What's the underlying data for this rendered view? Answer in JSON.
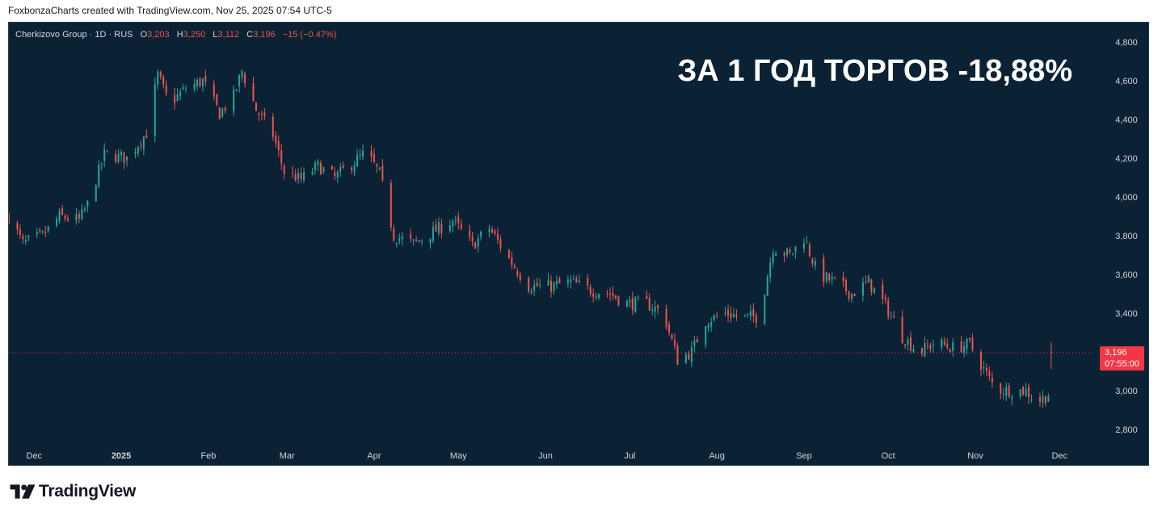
{
  "header": {
    "attribution": "FoxbonzaCharts created with TradingView.com, Nov 25, 2025 07:54 UTC-5"
  },
  "legend": {
    "symbol": "Cherkizovo Group · 1D · RUS",
    "o_label": "O",
    "o_value": "3,203",
    "h_label": "H",
    "h_value": "3,250",
    "l_label": "L",
    "l_value": "3,112",
    "c_label": "C",
    "c_value": "3,196",
    "change": "−15 (−0.47%)"
  },
  "headline": "ЗА 1 ГОД ТОРГОВ -18,88%",
  "price_tag": {
    "price": "3,196",
    "countdown": "07:55:00"
  },
  "footer": {
    "brand": "TradingView"
  },
  "colors": {
    "background": "#0b2234",
    "up": "#26a69a",
    "down": "#ef5350",
    "axis_text": "#d1d4dc",
    "headline": "#ffffff",
    "last_price": "#f23645"
  },
  "chart_data": {
    "type": "candlestick",
    "title": "",
    "y_axis": {
      "min": 2700,
      "max": 4900,
      "ticks": [
        {
          "value": 4800,
          "label": "4,800"
        },
        {
          "value": 4600,
          "label": "4,600"
        },
        {
          "value": 4400,
          "label": "4,400"
        },
        {
          "value": 4200,
          "label": "4,200"
        },
        {
          "value": 4000,
          "label": "4,000"
        },
        {
          "value": 3800,
          "label": "3,800"
        },
        {
          "value": 3600,
          "label": "3,600"
        },
        {
          "value": 3400,
          "label": "3,400"
        },
        {
          "value": 3000,
          "label": "3,000"
        },
        {
          "value": 2800,
          "label": "2,800"
        }
      ]
    },
    "x_axis": {
      "start_date": "2024-11-22",
      "end_date": "2025-12-13",
      "ticks": [
        {
          "date": "2024-12-01",
          "label": "Dec",
          "bold": false
        },
        {
          "date": "2025-01-01",
          "label": "2025",
          "bold": true
        },
        {
          "date": "2025-02-01",
          "label": "Feb",
          "bold": false
        },
        {
          "date": "2025-03-01",
          "label": "Mar",
          "bold": false
        },
        {
          "date": "2025-04-01",
          "label": "Apr",
          "bold": false
        },
        {
          "date": "2025-05-01",
          "label": "May",
          "bold": false
        },
        {
          "date": "2025-06-01",
          "label": "Jun",
          "bold": false
        },
        {
          "date": "2025-07-01",
          "label": "Jul",
          "bold": false
        },
        {
          "date": "2025-08-01",
          "label": "Aug",
          "bold": false
        },
        {
          "date": "2025-09-01",
          "label": "Sep",
          "bold": false
        },
        {
          "date": "2025-10-01",
          "label": "Oct",
          "bold": false
        },
        {
          "date": "2025-11-01",
          "label": "Nov",
          "bold": false
        },
        {
          "date": "2025-12-01",
          "label": "Dec",
          "bold": false
        }
      ]
    },
    "last_price": 3196,
    "close_path": [
      {
        "date": "2024-11-22",
        "close": 3900
      },
      {
        "date": "2024-11-27",
        "close": 3760
      },
      {
        "date": "2024-12-04",
        "close": 3800
      },
      {
        "date": "2024-12-10",
        "close": 3900
      },
      {
        "date": "2024-12-17",
        "close": 3880
      },
      {
        "date": "2024-12-20",
        "close": 3960
      },
      {
        "date": "2024-12-26",
        "close": 4220
      },
      {
        "date": "2025-01-03",
        "close": 4200
      },
      {
        "date": "2025-01-10",
        "close": 4330
      },
      {
        "date": "2025-01-14",
        "close": 4630
      },
      {
        "date": "2025-01-18",
        "close": 4480
      },
      {
        "date": "2025-01-24",
        "close": 4560
      },
      {
        "date": "2025-01-30",
        "close": 4600
      },
      {
        "date": "2025-02-05",
        "close": 4430
      },
      {
        "date": "2025-02-10",
        "close": 4520
      },
      {
        "date": "2025-02-13",
        "close": 4650
      },
      {
        "date": "2025-02-18",
        "close": 4450
      },
      {
        "date": "2025-02-24",
        "close": 4320
      },
      {
        "date": "2025-02-28",
        "close": 4130
      },
      {
        "date": "2025-03-06",
        "close": 4090
      },
      {
        "date": "2025-03-12",
        "close": 4160
      },
      {
        "date": "2025-03-18",
        "close": 4100
      },
      {
        "date": "2025-03-24",
        "close": 4170
      },
      {
        "date": "2025-03-29",
        "close": 4230
      },
      {
        "date": "2025-04-03",
        "close": 4120
      },
      {
        "date": "2025-04-08",
        "close": 3800
      },
      {
        "date": "2025-04-15",
        "close": 3760
      },
      {
        "date": "2025-04-22",
        "close": 3820
      },
      {
        "date": "2025-04-29",
        "close": 3880
      },
      {
        "date": "2025-05-06",
        "close": 3750
      },
      {
        "date": "2025-05-12",
        "close": 3840
      },
      {
        "date": "2025-05-19",
        "close": 3680
      },
      {
        "date": "2025-05-26",
        "close": 3540
      },
      {
        "date": "2025-06-03",
        "close": 3540
      },
      {
        "date": "2025-06-10",
        "close": 3560
      },
      {
        "date": "2025-06-17",
        "close": 3520
      },
      {
        "date": "2025-06-24",
        "close": 3500
      },
      {
        "date": "2025-06-30",
        "close": 3450
      },
      {
        "date": "2025-07-07",
        "close": 3450
      },
      {
        "date": "2025-07-13",
        "close": 3400
      },
      {
        "date": "2025-07-18",
        "close": 3160
      },
      {
        "date": "2025-07-23",
        "close": 3200
      },
      {
        "date": "2025-07-28",
        "close": 3360
      },
      {
        "date": "2025-08-04",
        "close": 3400
      },
      {
        "date": "2025-08-10",
        "close": 3380
      },
      {
        "date": "2025-08-16",
        "close": 3380
      },
      {
        "date": "2025-08-21",
        "close": 3740
      },
      {
        "date": "2025-08-27",
        "close": 3700
      },
      {
        "date": "2025-09-01",
        "close": 3790
      },
      {
        "date": "2025-09-06",
        "close": 3600
      },
      {
        "date": "2025-09-12",
        "close": 3560
      },
      {
        "date": "2025-09-18",
        "close": 3500
      },
      {
        "date": "2025-09-24",
        "close": 3560
      },
      {
        "date": "2025-09-30",
        "close": 3440
      },
      {
        "date": "2025-10-06",
        "close": 3280
      },
      {
        "date": "2025-10-12",
        "close": 3200
      },
      {
        "date": "2025-10-18",
        "close": 3250
      },
      {
        "date": "2025-10-24",
        "close": 3220
      },
      {
        "date": "2025-10-30",
        "close": 3240
      },
      {
        "date": "2025-11-04",
        "close": 3110
      },
      {
        "date": "2025-11-08",
        "close": 3010
      },
      {
        "date": "2025-11-14",
        "close": 3000
      },
      {
        "date": "2025-11-19",
        "close": 3000
      },
      {
        "date": "2025-11-23",
        "close": 2940
      },
      {
        "date": "2025-11-27",
        "close": 2980
      },
      {
        "date": "2025-11-28",
        "close": 3196
      }
    ]
  }
}
